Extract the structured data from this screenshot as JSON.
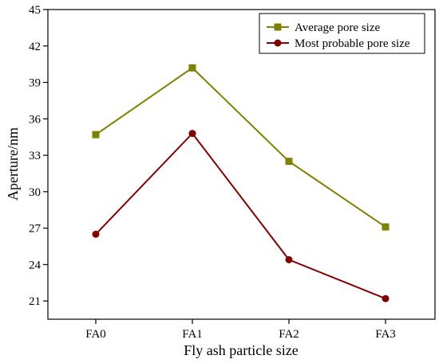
{
  "chart_data": {
    "type": "line",
    "categories": [
      "FA0",
      "FA1",
      "FA2",
      "FA3"
    ],
    "xlabel": "Fly ash particle size",
    "ylabel": "Aperture/nm",
    "ylim": [
      19.5,
      45
    ],
    "yticks": [
      21,
      24,
      27,
      30,
      33,
      36,
      39,
      42,
      45
    ],
    "grid": false,
    "legend_position": "top-right",
    "series": [
      {
        "name": "Average pore size",
        "values": [
          34.7,
          40.2,
          32.5,
          27.1
        ],
        "color": "#808000",
        "marker": "square"
      },
      {
        "name": "Most probable pore size",
        "values": [
          26.5,
          34.8,
          24.4,
          21.2
        ],
        "color": "#800000",
        "marker": "circle"
      }
    ]
  }
}
